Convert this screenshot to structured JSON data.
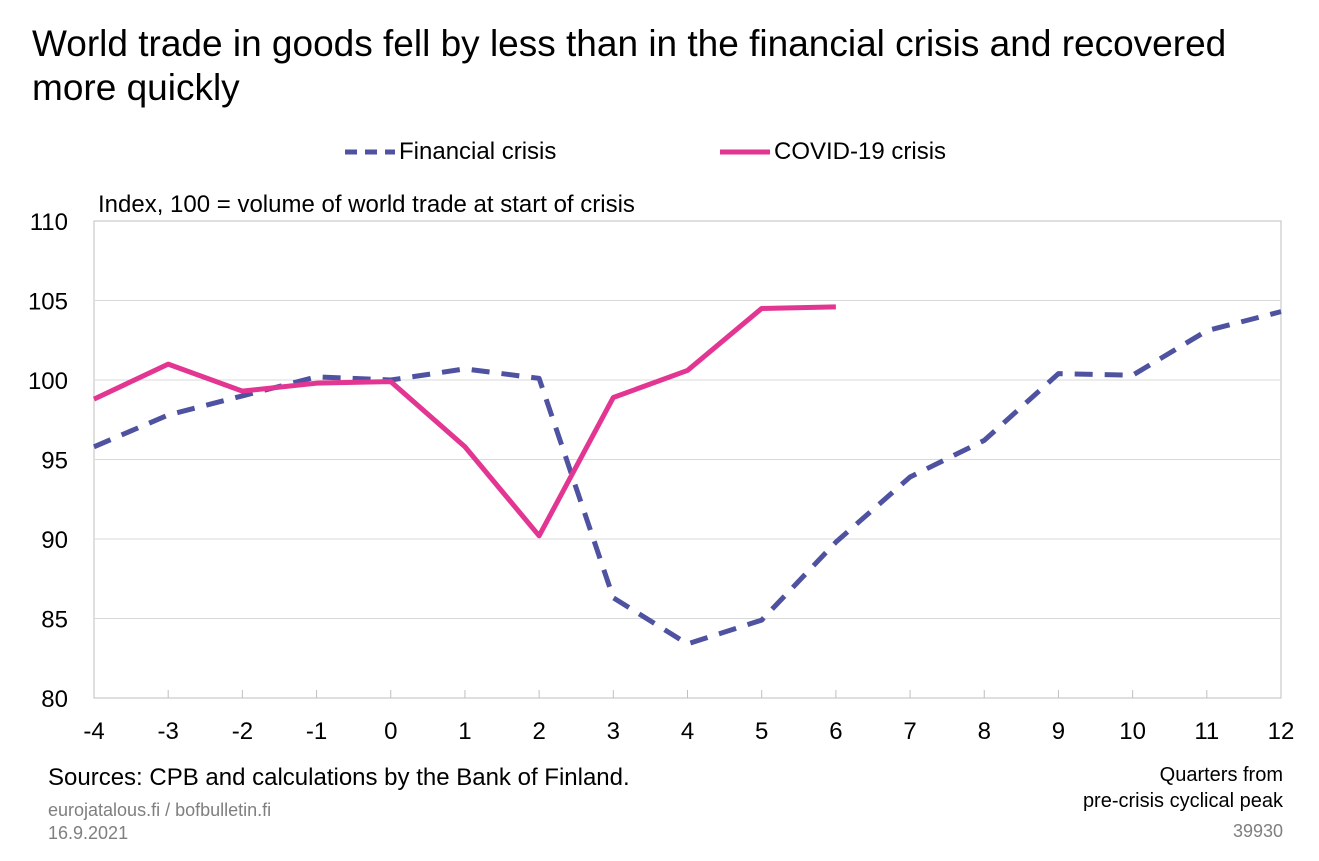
{
  "title": "World trade in goods fell by less than in the financial crisis and recovered more quickly",
  "chart_data": {
    "type": "line",
    "title": "World trade in goods fell by less than in the financial crisis and recovered more quickly",
    "ylabel": "Index, 100 = volume of world trade at start of crisis",
    "xlabel": "Quarters from pre-crisis cyclical peak",
    "x": [
      -4,
      -3,
      -2,
      -1,
      0,
      1,
      2,
      3,
      4,
      5,
      6,
      7,
      8,
      9,
      10,
      11,
      12
    ],
    "xlim": [
      -4,
      12
    ],
    "ylim": [
      80,
      110
    ],
    "yticks": [
      80,
      85,
      90,
      95,
      100,
      105,
      110
    ],
    "grid": "horizontal",
    "legend": "top-center",
    "series": [
      {
        "name": "Financial crisis",
        "color": "#4e52a0",
        "style": "dashed",
        "x": [
          -4,
          -3,
          -2,
          -1,
          0,
          1,
          2,
          3,
          4,
          5,
          6,
          7,
          8,
          9,
          10,
          11,
          12
        ],
        "values": [
          95.8,
          97.8,
          99.0,
          100.2,
          100.0,
          100.7,
          100.1,
          86.3,
          83.4,
          84.9,
          89.8,
          93.9,
          96.2,
          100.4,
          100.3,
          103.1,
          104.3
        ]
      },
      {
        "name": "COVID-19 crisis",
        "color": "#e23692",
        "style": "solid",
        "x": [
          -4,
          -3,
          -2,
          -1,
          0,
          1,
          2,
          3,
          4,
          5,
          6
        ],
        "values": [
          98.8,
          101.0,
          99.3,
          99.8,
          99.9,
          95.8,
          90.2,
          98.9,
          100.6,
          104.5,
          104.6
        ]
      }
    ]
  },
  "footer": {
    "sources": "Sources: CPB and calculations by the Bank of Finland.",
    "site": "eurojatalous.fi / bofbulletin.fi",
    "date": "16.9.2021",
    "xnote_line1": "Quarters from",
    "xnote_line2": "pre-crisis cyclical peak",
    "code": "39930"
  }
}
